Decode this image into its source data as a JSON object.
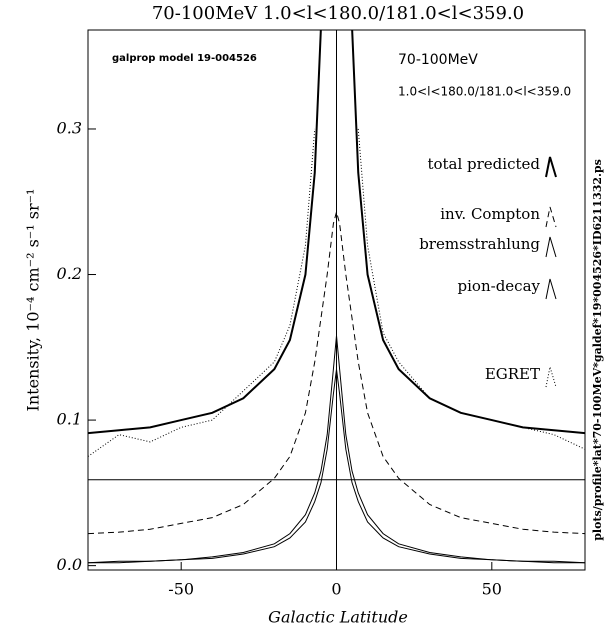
{
  "chart_data": {
    "type": "line",
    "title": "70-100MeV   1.0<l<180.0/181.0<l<359.0",
    "x_label": "Galactic Latitude",
    "y_label": "Intensity, 10⁻⁴ cm⁻² s⁻¹ sr⁻¹",
    "annotations": [
      "galprop model 19-004526",
      "70-100MeV",
      "1.0<l<180.0/181.0<l<359.0",
      "plots/profile*lat*70-100MeV*galdef*19*004526*ID6211332.ps"
    ],
    "x": [
      -80,
      -70,
      -60,
      -50,
      -40,
      -30,
      -20,
      -15,
      -10,
      -7,
      -5,
      -3,
      -1,
      0,
      1,
      3,
      5,
      7,
      10,
      15,
      20,
      30,
      40,
      50,
      60,
      70,
      80
    ],
    "series": [
      {
        "name": "total predicted",
        "color": "#000",
        "values": [
          0.091,
          0.093,
          0.095,
          0.1,
          0.105,
          0.115,
          0.135,
          0.155,
          0.2,
          0.27,
          0.37,
          null,
          null,
          null,
          null,
          null,
          0.37,
          0.27,
          0.2,
          0.155,
          0.135,
          0.115,
          0.105,
          0.1,
          0.095,
          0.093,
          0.091
        ]
      },
      {
        "name": "inv. Compton",
        "color": "#000",
        "values": [
          0.022,
          0.023,
          0.025,
          0.029,
          0.033,
          0.042,
          0.06,
          0.075,
          0.105,
          0.14,
          0.17,
          0.2,
          0.235,
          0.243,
          0.235,
          0.2,
          0.17,
          0.14,
          0.105,
          0.075,
          0.06,
          0.042,
          0.033,
          0.029,
          0.025,
          0.023,
          0.022
        ]
      },
      {
        "name": "bremsstrahlung",
        "color": "#000",
        "values": [
          0.002,
          0.002,
          0.003,
          0.004,
          0.005,
          0.008,
          0.013,
          0.019,
          0.03,
          0.044,
          0.057,
          0.08,
          0.118,
          0.135,
          0.118,
          0.08,
          0.057,
          0.044,
          0.03,
          0.019,
          0.013,
          0.008,
          0.005,
          0.004,
          0.003,
          0.002,
          0.002
        ]
      },
      {
        "name": "pion-decay",
        "color": "#000",
        "values": [
          0.002,
          0.003,
          0.003,
          0.004,
          0.006,
          0.009,
          0.015,
          0.022,
          0.035,
          0.05,
          0.065,
          0.09,
          0.135,
          0.158,
          0.135,
          0.09,
          0.065,
          0.05,
          0.035,
          0.022,
          0.015,
          0.009,
          0.006,
          0.004,
          0.003,
          0.003,
          0.002
        ]
      },
      {
        "name": "EGRET",
        "color": "#000",
        "values": [
          0.075,
          0.09,
          0.085,
          0.095,
          0.1,
          0.12,
          0.14,
          0.165,
          0.22,
          0.3,
          null,
          null,
          null,
          null,
          null,
          null,
          null,
          0.3,
          0.22,
          0.16,
          0.14,
          0.115,
          0.105,
          0.1,
          0.095,
          0.09,
          0.08
        ]
      }
    ],
    "hline": 0.059,
    "vline": 0,
    "xlim": [
      -80,
      80
    ],
    "xticks": [
      -50,
      0,
      50
    ],
    "ylim": [
      -0.003,
      0.368
    ],
    "yticks": [
      {
        "value": 0,
        "label": "0.0"
      },
      0.1,
      0.2,
      0.3
    ]
  }
}
